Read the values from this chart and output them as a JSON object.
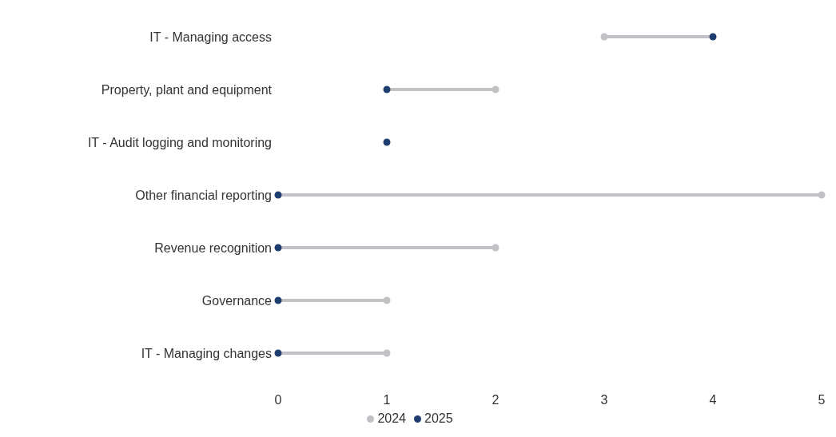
{
  "chart_data": {
    "type": "scatter",
    "orientation": "horizontal",
    "categories": [
      "IT - Managing access",
      "Property, plant and equipment",
      "IT - Audit logging and monitoring",
      "Other financial reporting",
      "Revenue recognition",
      "Governance",
      "IT - Managing changes"
    ],
    "series": [
      {
        "name": "2024",
        "color": "#c2c2c6",
        "values": [
          3,
          2,
          null,
          5,
          2,
          1,
          1
        ]
      },
      {
        "name": "2025",
        "color": "#1f3d6e",
        "values": [
          4,
          1,
          1,
          0,
          0,
          0,
          0
        ]
      }
    ],
    "xlim": [
      0,
      5
    ],
    "xticks": [
      0,
      1,
      2,
      3,
      4,
      5
    ],
    "legend": "bottom",
    "marker": "circle"
  }
}
